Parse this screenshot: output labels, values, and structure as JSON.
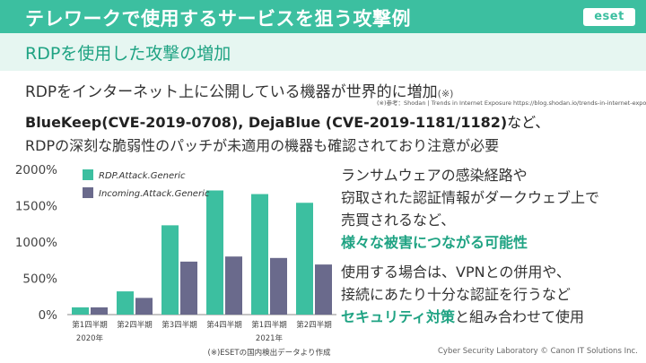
{
  "header": {
    "title": "テレワークで使用するサービスを狙う攻撃例",
    "logo": "eset"
  },
  "subheader": {
    "title": "RDPを使用した攻撃の増加"
  },
  "body": {
    "line1_main": "RDPをインターネット上に公開している機器が世界的に増加",
    "line1_note": "(※)",
    "ref": "(※)参考：Shodan | Trends in Internet Exposure https://blog.shodan.io/trends-in-internet-exposure/",
    "line2_bold": "BlueKeep(CVE-2019-0708), DejaBlue (CVE-2019-1181/1182)",
    "line2_rest": "など、",
    "line3": "RDPの深刻な脆弱性のパッチが未適用の機器も確認されており注意が必要"
  },
  "right": {
    "p1_line1": "ランサムウェアの感染経路や",
    "p1_line2": "窃取された認証情報がダークウェブ上で",
    "p1_line3": "売買されるなど、",
    "p1_accent": "様々な被害につながる可能性",
    "p2_line1": "使用する場合は、VPNとの併用や、",
    "p2_line2": "接続にあたり十分な認証を行うなど",
    "p2_accent": "セキュリティ対策",
    "p2_rest": "と組み合わせて使用"
  },
  "footer": "Cyber Security Laboratory © Canon IT Solutions Inc.",
  "colors": {
    "header": "#3cbfa0",
    "accent": "#1fa383",
    "series1": "#3cbfa0",
    "series2": "#6a6a8c"
  },
  "chart_data": {
    "type": "bar",
    "categories": [
      "第1四半期",
      "第2四半期",
      "第3四半期",
      "第4四半期",
      "第1四半期",
      "第2四半期"
    ],
    "year_labels": [
      "2020年",
      "2021年"
    ],
    "series": [
      {
        "name": "RDP.Attack.Generic",
        "values": [
          100,
          320,
          1230,
          1710,
          1660,
          1540
        ]
      },
      {
        "name": "Incoming.Attack.Generic",
        "values": [
          100,
          230,
          730,
          800,
          780,
          690
        ]
      }
    ],
    "ytick_labels": [
      "2000%",
      "1500%",
      "1000%",
      "500%",
      "0%"
    ],
    "ylim": [
      0,
      2000
    ],
    "legend": "top-left",
    "grid": false,
    "source_note": "(※)ESETの国内検出データより作成"
  }
}
